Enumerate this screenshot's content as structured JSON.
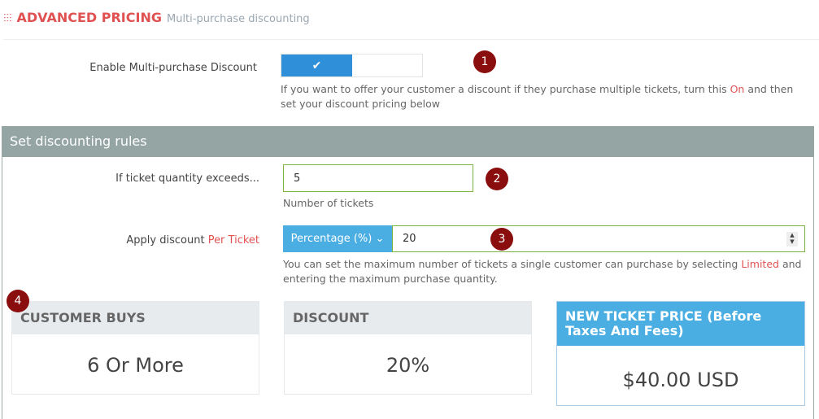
{
  "header": {
    "icon": "sliders-icon",
    "title": "ADVANCED PRICING",
    "subtitle": "Multi-purchase discounting"
  },
  "enable": {
    "label": "Enable Multi-purchase Discount",
    "toggle_on": true,
    "check": "✔",
    "help_pre": "If you want to offer your customer a discount if they purchase multiple tickets, turn this ",
    "help_on": "On",
    "help_post": " and then set your discount pricing below"
  },
  "rules": {
    "title": "Set discounting rules",
    "qty_label": "If ticket quantity exceeds...",
    "qty_value": "5",
    "qty_help": "Number of tickets",
    "apply_label": "Apply discount ",
    "apply_label_accent": "Per Ticket",
    "discount_type": "Percentage (%) ⌄",
    "discount_value": "20",
    "help_pre": "You can set the maximum number of tickets a single customer can purchase by selecting ",
    "help_limited": "Limited",
    "help_post": " and entering the maximum purchase quantity."
  },
  "cards": [
    {
      "title": "CUSTOMER BUYS",
      "value": "6 Or More"
    },
    {
      "title": "DISCOUNT",
      "value": "20%"
    },
    {
      "title": "NEW TICKET PRICE (Before Taxes And Fees)",
      "value": "$40.00 USD"
    }
  ],
  "badges": [
    "1",
    "2",
    "3",
    "4"
  ],
  "colors": {
    "accent": "#e05252",
    "toggle": "#2f8fd8",
    "select": "#4aaee3",
    "panel_header": "#95a5a3",
    "badge": "#8b0e0e"
  }
}
